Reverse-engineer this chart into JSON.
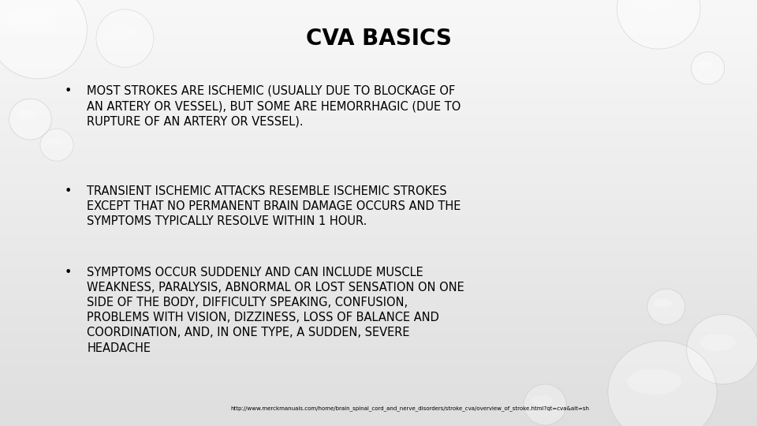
{
  "title": "CVA BASICS",
  "title_fontsize": 20,
  "title_fontweight": "bold",
  "title_color": "#000000",
  "text_color": "#000000",
  "bullet_fontsize": 10.5,
  "bullet1": "MOST STROKES ARE ISCHEMIC (USUALLY DUE TO BLOCKAGE OF\nAN ARTERY OR VESSEL), BUT SOME ARE HEMORRHAGIC (DUE TO\nRUPTURE OF AN ARTERY OR VESSEL).",
  "bullet2": "TRANSIENT ISCHEMIC ATTACKS RESEMBLE ISCHEMIC STROKES\nEXCEPT THAT NO PERMANENT BRAIN DAMAGE OCCURS AND THE\nSYMPTOMS TYPICALLY RESOLVE WITHIN 1 HOUR.",
  "bullet3": "SYMPTOMS OCCUR SUDDENLY AND CAN INCLUDE MUSCLE\nWEAKNESS, PARALYSIS, ABNORMAL OR LOST SENSATION ON ONE\nSIDE OF THE BODY, DIFFICULTY SPEAKING, CONFUSION,\nPROBLEMS WITH VISION, DIZZINESS, LOSS OF BALANCE AND\nCOORDINATION, AND, IN ONE TYPE, A SUDDEN, SEVERE\nHEADACHE",
  "url": "http://www.merckmanuals.com/home/brain_spinal_cord_and_nerve_disorders/stroke_cva/overview_of_stroke.html?qt=cva&alt=sh",
  "url_fontsize": 5.0,
  "bubbles_tl": [
    [
      0.05,
      0.93,
      0.065,
      0.115,
      0.55
    ],
    [
      0.165,
      0.91,
      0.038,
      0.068,
      0.45
    ],
    [
      0.04,
      0.72,
      0.028,
      0.048,
      0.55
    ],
    [
      0.075,
      0.66,
      0.022,
      0.038,
      0.45
    ]
  ],
  "bubbles_tr": [
    [
      0.87,
      0.98,
      0.055,
      0.095,
      0.5
    ],
    [
      0.935,
      0.84,
      0.022,
      0.038,
      0.5
    ]
  ],
  "bubbles_br": [
    [
      0.88,
      0.28,
      0.025,
      0.042,
      0.5
    ],
    [
      0.955,
      0.18,
      0.048,
      0.082,
      0.55
    ],
    [
      0.875,
      0.08,
      0.072,
      0.12,
      0.5
    ],
    [
      0.72,
      0.05,
      0.028,
      0.048,
      0.45
    ]
  ]
}
